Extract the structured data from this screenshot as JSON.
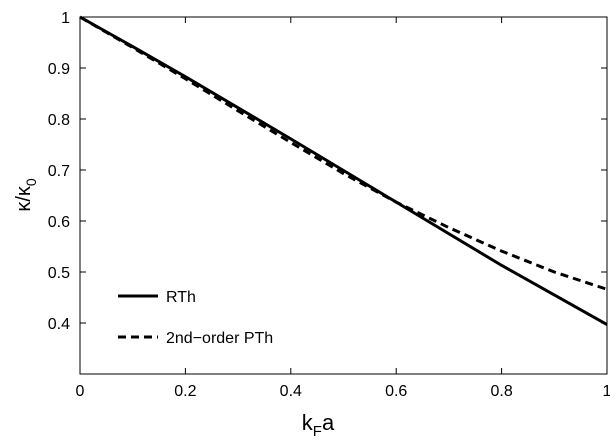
{
  "chart_data": {
    "type": "line",
    "xlabel": {
      "main": "k",
      "sub": "F",
      "tail": "a"
    },
    "ylabel": {
      "main": "κ/κ",
      "sub": "0"
    },
    "xlim": [
      0,
      1
    ],
    "ylim": [
      0.3,
      1.0
    ],
    "x_ticks": [
      0,
      0.2,
      0.4,
      0.6,
      0.8,
      1
    ],
    "x_tick_labels": [
      "0",
      "0.2",
      "0.4",
      "0.6",
      "0.8",
      "1"
    ],
    "y_ticks": [
      0.4,
      0.5,
      0.6,
      0.7,
      0.8,
      0.9,
      1.0
    ],
    "y_tick_labels": [
      "0.4",
      "0.5",
      "0.6",
      "0.7",
      "0.8",
      "0.9",
      "1"
    ],
    "grid": false,
    "legend_position": "bottom-left",
    "series": [
      {
        "name": "RTh",
        "style": "solid",
        "color": "#000000",
        "x": [
          0,
          0.1,
          0.2,
          0.3,
          0.4,
          0.5,
          0.6,
          0.7,
          0.8,
          0.9,
          1.0
        ],
        "y": [
          1.0,
          0.942,
          0.883,
          0.822,
          0.761,
          0.699,
          0.637,
          0.575,
          0.513,
          0.455,
          0.397
        ]
      },
      {
        "name": "2nd−order PTh",
        "style": "dashed",
        "color": "#000000",
        "x": [
          0,
          0.1,
          0.2,
          0.3,
          0.4,
          0.5,
          0.6,
          0.7,
          0.8,
          0.9,
          1.0
        ],
        "y": [
          1.0,
          0.94,
          0.879,
          0.816,
          0.754,
          0.693,
          0.637,
          0.587,
          0.541,
          0.5,
          0.466
        ]
      }
    ]
  }
}
